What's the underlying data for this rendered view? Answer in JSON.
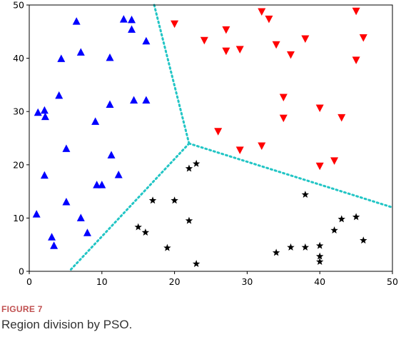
{
  "chart_data": {
    "type": "scatter",
    "xlim": [
      0,
      50
    ],
    "ylim": [
      0,
      50
    ],
    "xticks": [
      0,
      10,
      20,
      30,
      40,
      50
    ],
    "yticks": [
      0,
      10,
      20,
      30,
      40,
      50
    ],
    "grid": false,
    "series": [
      {
        "marker": "triangle-up",
        "color": "#0000ff",
        "points": [
          [
            1,
            10.7
          ],
          [
            1.2,
            29.8
          ],
          [
            2.1,
            30.2
          ],
          [
            2.2,
            29
          ],
          [
            2.1,
            18
          ],
          [
            3.1,
            6.4
          ],
          [
            3.4,
            4.8
          ],
          [
            4.1,
            33
          ],
          [
            4.4,
            39.9
          ],
          [
            5.1,
            23
          ],
          [
            5.1,
            13
          ],
          [
            6.5,
            46.9
          ],
          [
            7.1,
            41.1
          ],
          [
            7.1,
            10
          ],
          [
            8,
            7.2
          ],
          [
            9.1,
            28.1
          ],
          [
            9.3,
            16.2
          ],
          [
            10,
            16.2
          ],
          [
            11.1,
            40.1
          ],
          [
            11.1,
            31.3
          ],
          [
            11.3,
            21.8
          ],
          [
            12.3,
            18.1
          ],
          [
            13,
            47.3
          ],
          [
            14.1,
            47.2
          ],
          [
            14.1,
            45.4
          ],
          [
            14.4,
            32.1
          ],
          [
            16.1,
            43.2
          ],
          [
            16.1,
            32.1
          ]
        ]
      },
      {
        "marker": "triangle-down",
        "color": "#ff0000",
        "points": [
          [
            20,
            46.5
          ],
          [
            24.1,
            43.4
          ],
          [
            26,
            26.3
          ],
          [
            27.1,
            45.4
          ],
          [
            27.1,
            41.4
          ],
          [
            29,
            41.7
          ],
          [
            29,
            22.8
          ],
          [
            32,
            48.8
          ],
          [
            32,
            23.6
          ],
          [
            33,
            47.4
          ],
          [
            34,
            42.6
          ],
          [
            35,
            32.7
          ],
          [
            35,
            28.8
          ],
          [
            36,
            40.7
          ],
          [
            38,
            43.7
          ],
          [
            40,
            30.7
          ],
          [
            40,
            19.8
          ],
          [
            42,
            20.8
          ],
          [
            43,
            28.9
          ],
          [
            45,
            48.9
          ],
          [
            45,
            39.7
          ],
          [
            46,
            43.9
          ]
        ]
      },
      {
        "marker": "star",
        "color": "#000000",
        "points": [
          [
            15,
            8.3
          ],
          [
            16,
            7.3
          ],
          [
            17,
            13.3
          ],
          [
            19,
            4.4
          ],
          [
            20,
            13.3
          ],
          [
            22,
            19.3
          ],
          [
            22,
            9.5
          ],
          [
            23,
            20.2
          ],
          [
            23,
            1.4
          ],
          [
            34,
            3.5
          ],
          [
            36,
            4.5
          ],
          [
            38,
            14.4
          ],
          [
            38,
            4.5
          ],
          [
            40,
            4.8
          ],
          [
            40,
            2.8
          ],
          [
            40,
            1.8
          ],
          [
            42,
            7.7
          ],
          [
            43,
            9.8
          ],
          [
            45,
            10.2
          ],
          [
            46,
            5.8
          ]
        ]
      }
    ],
    "boundaries": [
      [
        [
          17.2,
          50
        ],
        [
          22,
          24
        ]
      ],
      [
        [
          22,
          24
        ],
        [
          5.5,
          0
        ]
      ],
      [
        [
          22,
          24
        ],
        [
          50,
          12
        ]
      ]
    ],
    "boundary_color": "#22c5c5"
  },
  "caption": {
    "label": "FIGURE 7",
    "text": "Region division by PSO."
  }
}
